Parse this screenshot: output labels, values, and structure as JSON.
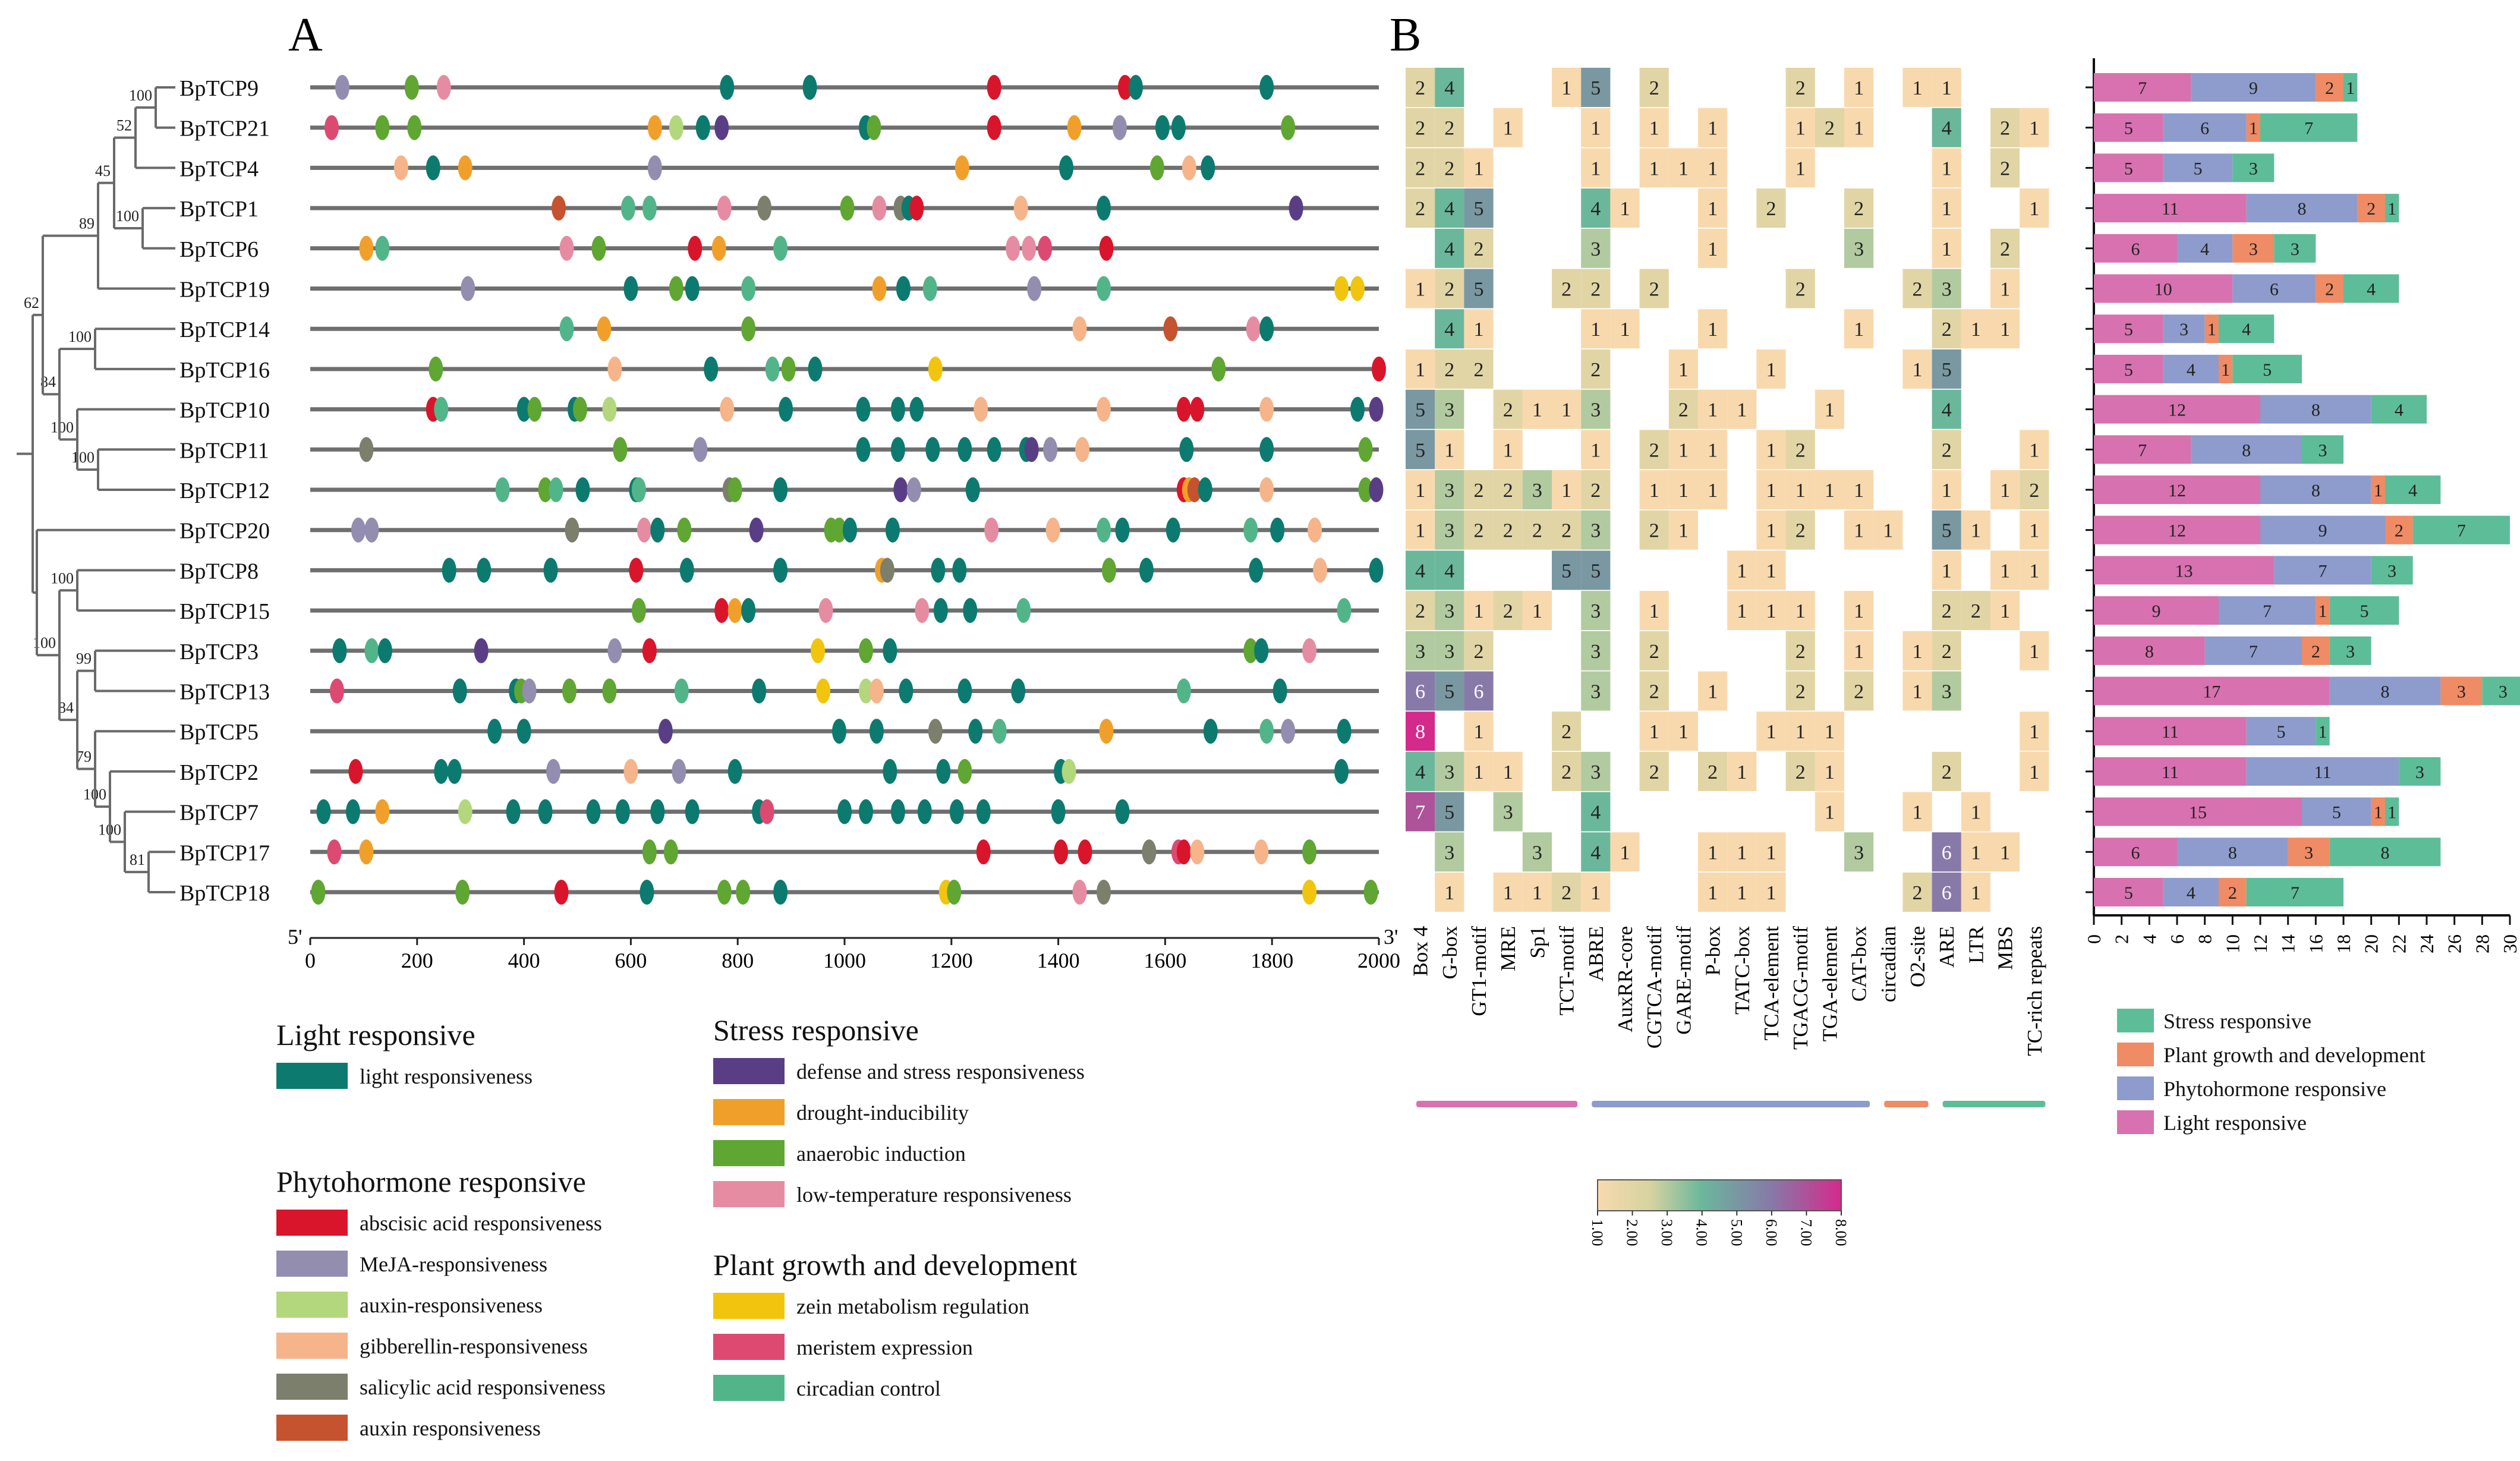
{
  "colors": {
    "light": "#0c7a6f",
    "defense": "#5a3e85",
    "drought": "#f0a02a",
    "anaerobic": "#5fa632",
    "lowtemp": "#e68ca2",
    "aba": "#d9152b",
    "meja": "#938db0",
    "auxin_resp": "#b3d77c",
    "gibberellin": "#f5b48a",
    "salicylic": "#7b7f6c",
    "auxin": "#c6532f",
    "zein": "#f1c50d",
    "meristem": "#dc4a72",
    "circadian": "#52b58a",
    "bar_light": "#d871b0",
    "bar_phyto": "#8d9ccc",
    "bar_plant": "#ef8b65",
    "bar_stress": "#5dbd98",
    "heat_low": "#f8d9ae",
    "heat_mid": "#6bb79c",
    "heat_high": "#d42a8c"
  },
  "panel_labels": {
    "a": "A",
    "b": "B"
  },
  "tree": {
    "genes": [
      "BpTCP9",
      "BpTCP21",
      "BpTCP4",
      "BpTCP1",
      "BpTCP6",
      "BpTCP19",
      "BpTCP14",
      "BpTCP16",
      "BpTCP10",
      "BpTCP11",
      "BpTCP12",
      "BpTCP20",
      "BpTCP8",
      "BpTCP15",
      "BpTCP3",
      "BpTCP13",
      "BpTCP5",
      "BpTCP2",
      "BpTCP7",
      "BpTCP17",
      "BpTCP18"
    ],
    "bootstrap": [
      "100",
      "52",
      "45",
      "100",
      "62",
      "89",
      "100",
      "84",
      "100",
      "100",
      "100",
      "100",
      "99",
      "84",
      "79",
      "100",
      "100",
      "81"
    ]
  },
  "motifs": {
    "axis": {
      "start_label": "5'",
      "end_label": "3'",
      "ticks": [
        "0",
        "200",
        "400",
        "600",
        "800",
        "1000",
        "1200",
        "1400",
        "1600",
        "1800",
        "2000"
      ],
      "max": 2000
    },
    "elements": [
      [
        "meja:60",
        "anaerobic:190",
        "lowtemp:250",
        "light:780",
        "light:935",
        "aba:1280",
        "aba:1525",
        "light:1545",
        "light:1790"
      ],
      [
        "meristem:40",
        "anaerobic:135",
        "anaerobic:195",
        "drought:645",
        "auxin_resp:685",
        "light:735",
        "defense:770",
        "light:1040",
        "anaerobic:1055",
        "aba:1280",
        "drought:1430",
        "meja:1515",
        "light:1595",
        "light:1625",
        "anaerobic:1830"
      ],
      [
        "gibberellin:170",
        "light:230",
        "drought:290",
        "meja:645",
        "drought:1220",
        "light:1415",
        "anaerobic:1585",
        "gibberellin:1645",
        "light:1680"
      ],
      [
        "auxin:465",
        "circadian:595",
        "circadian:635",
        "lowtemp:775",
        "salicylic:850",
        "anaerobic:1005",
        "lowtemp:1065",
        "salicylic:1105",
        "light:1120",
        "aba:1135",
        "gibberellin:1330",
        "light:1485",
        "defense:1845"
      ],
      [
        "drought:105",
        "circadian:135",
        "lowtemp:480",
        "anaerobic:540",
        "aba:720",
        "drought:765",
        "circadian:880",
        "lowtemp:1315",
        "lowtemp:1345",
        "meristem:1375",
        "aba:1490"
      ],
      [
        "meja:295",
        "light:600",
        "anaerobic:685",
        "light:715",
        "circadian:820",
        "drought:1065",
        "light:1110",
        "circadian:1160",
        "meja:1355",
        "circadian:1485",
        "zein:1930",
        "zein:1960"
      ],
      [
        "circadian:480",
        "drought:550",
        "anaerobic:820",
        "gibberellin:1440",
        "auxin:1610",
        "lowtemp:1765",
        "light:1790"
      ],
      [
        "anaerobic:235",
        "gibberellin:570",
        "light:750",
        "circadian:865",
        "anaerobic:895",
        "light:945",
        "zein:1170",
        "anaerobic:1700",
        "aba:2000"
      ],
      [
        "aba:230",
        "circadian:245",
        "light:400",
        "anaerobic:420",
        "light:495",
        "anaerobic:505",
        "auxin_resp:560",
        "gibberellin:780",
        "light:890",
        "light:1035",
        "light:1100",
        "light:1135",
        "gibberellin:1255",
        "gibberellin:1485",
        "aba:1635",
        "aba:1660",
        "gibberellin:1790",
        "light:1960",
        "defense:1995"
      ],
      [
        "salicylic:105",
        "anaerobic:580",
        "meja:730",
        "light:1035",
        "light:1100",
        "light:1165",
        "light:1225",
        "light:1280",
        "light:1340",
        "defense:1350",
        "meja:1385",
        "gibberellin:1445",
        "light:1640",
        "light:1790",
        "anaerobic:1975"
      ],
      [
        "circadian:360",
        "anaerobic:440",
        "circadian:460",
        "light:510",
        "light:610",
        "circadian:615",
        "salicylic:785",
        "anaerobic:795",
        "light:880",
        "defense:1105",
        "meja:1130",
        "light:1240",
        "aba:1635",
        "drought:1645",
        "auxin:1655",
        "light:1675",
        "gibberellin:1790",
        "anaerobic:1975",
        "defense:1995"
      ],
      [
        "meja:90",
        "meja:115",
        "salicylic:490",
        "lowtemp:625",
        "light:650",
        "anaerobic:700",
        "defense:835",
        "anaerobic:975",
        "anaerobic:990",
        "light:1010",
        "light:1090",
        "lowtemp:1275",
        "gibberellin:1390",
        "circadian:1485",
        "light:1520",
        "light:1615",
        "circadian:1760",
        "light:1810",
        "gibberellin:1880"
      ],
      [
        "light:260",
        "light:325",
        "light:450",
        "aba:610",
        "light:705",
        "light:880",
        "drought:1070",
        "salicylic:1080",
        "light:1175",
        "light:1215",
        "anaerobic:1495",
        "light:1565",
        "light:1770",
        "gibberellin:1890",
        "light:1995"
      ],
      [
        "anaerobic:615",
        "aba:770",
        "drought:795",
        "light:820",
        "lowtemp:965",
        "lowtemp:1145",
        "light:1180",
        "light:1235",
        "circadian:1335",
        "circadian:1935"
      ],
      [
        "light:55",
        "circadian:115",
        "light:140",
        "defense:320",
        "meja:570",
        "aba:635",
        "zein:950",
        "anaerobic:1040",
        "light:1085",
        "anaerobic:1760",
        "light:1780",
        "lowtemp:1870"
      ],
      [
        "meristem:50",
        "light:280",
        "light:385",
        "anaerobic:395",
        "meja:410",
        "anaerobic:485",
        "anaerobic:560",
        "circadian:695",
        "light:840",
        "zein:960",
        "auxin_resp:1040",
        "gibberellin:1060",
        "light:1115",
        "light:1225",
        "light:1325",
        "circadian:1635",
        "light:1815"
      ],
      [
        "light:345",
        "light:400",
        "defense:665",
        "light:990",
        "light:1060",
        "salicylic:1170",
        "light:1245",
        "circadian:1290",
        "drought:1490",
        "light:1685",
        "circadian:1790",
        "meja:1830",
        "light:1935"
      ],
      [
        "aba:85",
        "light:245",
        "light:270",
        "meja:455",
        "gibberellin:600",
        "meja:690",
        "light:795",
        "light:1085",
        "light:1185",
        "anaerobic:1225",
        "light:1405",
        "auxin_resp:1420",
        "light:1930"
      ],
      [
        "light:25",
        "light:80",
        "drought:135",
        "auxin_resp:290",
        "light:380",
        "light:440",
        "light:530",
        "light:585",
        "light:650",
        "light:715",
        "light:840",
        "meristem:855",
        "light:1000",
        "light:1040",
        "light:1100",
        "light:1150",
        "light:1210",
        "light:1260",
        "light:1400",
        "light:1520"
      ],
      [
        "meristem:45",
        "drought:105",
        "anaerobic:635",
        "anaerobic:675",
        "aba:1260",
        "aba:1405",
        "aba:1450",
        "salicylic:1570",
        "meristem:1625",
        "aba:1635",
        "gibberellin:1660",
        "gibberellin:1780",
        "anaerobic:1870"
      ],
      [
        "anaerobic:15",
        "anaerobic:285",
        "aba:470",
        "light:630",
        "anaerobic:775",
        "anaerobic:810",
        "light:880",
        "zein:1190",
        "anaerobic:1205",
        "lowtemp:1440",
        "salicylic:1485",
        "zein:1870",
        "anaerobic:1985"
      ]
    ]
  },
  "heatmap": {
    "columns": [
      "Box 4",
      "G-box",
      "GT1-motif",
      "MRE",
      "Sp1",
      "TCT-motif",
      "ABRE",
      "AuxRR-core",
      "CGTCA-motif",
      "GARE-motif",
      "P-box",
      "TATC-box",
      "TCA-element",
      "TGACG-motif",
      "TGA-element",
      "CAT-box",
      "circadian",
      "O2-site",
      "ARE",
      "LTR",
      "MBS",
      "TC-rich repeats"
    ],
    "values": [
      [
        2,
        4,
        0,
        0,
        0,
        1,
        5,
        0,
        2,
        0,
        0,
        0,
        0,
        2,
        0,
        1,
        0,
        1,
        1,
        0,
        0,
        0
      ],
      [
        2,
        2,
        0,
        1,
        0,
        0,
        1,
        0,
        1,
        0,
        1,
        0,
        0,
        1,
        2,
        1,
        0,
        0,
        4,
        0,
        2,
        1
      ],
      [
        2,
        2,
        1,
        0,
        0,
        0,
        1,
        0,
        1,
        1,
        1,
        0,
        0,
        1,
        0,
        0,
        0,
        0,
        1,
        0,
        2,
        0
      ],
      [
        2,
        4,
        5,
        0,
        0,
        0,
        4,
        1,
        0,
        0,
        1,
        0,
        2,
        0,
        0,
        2,
        0,
        0,
        1,
        0,
        0,
        1
      ],
      [
        0,
        4,
        2,
        0,
        0,
        0,
        3,
        0,
        0,
        0,
        1,
        0,
        0,
        0,
        0,
        3,
        0,
        0,
        1,
        0,
        2,
        0
      ],
      [
        1,
        2,
        5,
        0,
        0,
        2,
        2,
        0,
        2,
        0,
        0,
        0,
        0,
        2,
        0,
        0,
        0,
        2,
        3,
        0,
        1,
        0
      ],
      [
        0,
        4,
        1,
        0,
        0,
        0,
        1,
        1,
        0,
        0,
        1,
        0,
        0,
        0,
        0,
        1,
        0,
        0,
        2,
        1,
        1,
        0
      ],
      [
        1,
        2,
        2,
        0,
        0,
        0,
        2,
        0,
        0,
        1,
        0,
        0,
        1,
        0,
        0,
        0,
        0,
        1,
        5,
        0,
        0,
        0
      ],
      [
        5,
        3,
        0,
        2,
        1,
        1,
        3,
        0,
        0,
        2,
        1,
        1,
        0,
        0,
        1,
        0,
        0,
        0,
        4,
        0,
        0,
        0
      ],
      [
        5,
        1,
        0,
        1,
        0,
        0,
        1,
        0,
        2,
        1,
        1,
        0,
        1,
        2,
        0,
        0,
        0,
        0,
        2,
        0,
        0,
        1
      ],
      [
        1,
        3,
        2,
        2,
        3,
        1,
        2,
        0,
        1,
        1,
        1,
        0,
        1,
        1,
        1,
        1,
        0,
        0,
        1,
        0,
        1,
        2
      ],
      [
        1,
        3,
        2,
        2,
        2,
        2,
        3,
        0,
        2,
        1,
        0,
        0,
        1,
        2,
        0,
        1,
        1,
        0,
        5,
        1,
        0,
        1
      ],
      [
        4,
        4,
        0,
        0,
        0,
        5,
        5,
        0,
        0,
        0,
        0,
        1,
        1,
        0,
        0,
        0,
        0,
        0,
        1,
        0,
        1,
        1
      ],
      [
        2,
        3,
        1,
        2,
        1,
        0,
        3,
        0,
        1,
        0,
        0,
        1,
        1,
        1,
        0,
        1,
        0,
        0,
        2,
        2,
        1,
        0
      ],
      [
        3,
        3,
        2,
        0,
        0,
        0,
        3,
        0,
        2,
        0,
        0,
        0,
        0,
        2,
        0,
        1,
        0,
        1,
        2,
        0,
        0,
        1
      ],
      [
        6,
        5,
        6,
        0,
        0,
        0,
        3,
        0,
        2,
        0,
        1,
        0,
        0,
        2,
        0,
        2,
        0,
        1,
        3,
        0,
        0,
        0
      ],
      [
        8,
        0,
        1,
        0,
        0,
        2,
        0,
        0,
        1,
        1,
        0,
        0,
        1,
        1,
        1,
        0,
        0,
        0,
        0,
        0,
        0,
        1
      ],
      [
        4,
        3,
        1,
        1,
        0,
        2,
        3,
        0,
        2,
        0,
        2,
        1,
        0,
        2,
        1,
        0,
        0,
        0,
        2,
        0,
        0,
        1
      ],
      [
        7,
        5,
        0,
        3,
        0,
        0,
        4,
        0,
        0,
        0,
        0,
        0,
        0,
        0,
        1,
        0,
        0,
        1,
        0,
        1,
        0,
        0
      ],
      [
        0,
        3,
        0,
        0,
        3,
        0,
        4,
        1,
        0,
        0,
        1,
        1,
        1,
        0,
        0,
        3,
        0,
        0,
        6,
        1,
        1,
        0
      ],
      [
        0,
        1,
        0,
        1,
        1,
        2,
        1,
        0,
        0,
        0,
        1,
        1,
        1,
        0,
        0,
        0,
        0,
        2,
        6,
        1,
        0,
        0
      ]
    ],
    "colorbar_ticks": [
      "1.00",
      "2.00",
      "3.00",
      "4.00",
      "5.00",
      "6.00",
      "7.00",
      "8.00"
    ]
  },
  "chart_data": {
    "type": "bar",
    "orientation": "horizontal",
    "stacked": true,
    "categories": [
      "BpTCP9",
      "BpTCP21",
      "BpTCP4",
      "BpTCP1",
      "BpTCP6",
      "BpTCP19",
      "BpTCP14",
      "BpTCP16",
      "BpTCP10",
      "BpTCP11",
      "BpTCP12",
      "BpTCP20",
      "BpTCP8",
      "BpTCP15",
      "BpTCP3",
      "BpTCP13",
      "BpTCP5",
      "BpTCP2",
      "BpTCP7",
      "BpTCP17",
      "BpTCP18"
    ],
    "series": [
      {
        "name": "Light responsive",
        "color_key": "bar_light",
        "values": [
          7,
          5,
          5,
          11,
          6,
          10,
          5,
          5,
          12,
          7,
          12,
          12,
          13,
          9,
          8,
          17,
          11,
          11,
          15,
          6,
          5
        ]
      },
      {
        "name": "Phytohormone responsive",
        "color_key": "bar_phyto",
        "values": [
          9,
          6,
          5,
          8,
          4,
          6,
          3,
          4,
          8,
          8,
          8,
          9,
          7,
          7,
          7,
          8,
          5,
          11,
          5,
          8,
          4
        ]
      },
      {
        "name": "Plant growth and development",
        "color_key": "bar_plant",
        "values": [
          2,
          1,
          0,
          2,
          3,
          2,
          1,
          1,
          0,
          0,
          1,
          2,
          0,
          1,
          2,
          3,
          0,
          0,
          1,
          3,
          2
        ]
      },
      {
        "name": "Stress responsive",
        "color_key": "bar_stress",
        "values": [
          1,
          7,
          3,
          1,
          3,
          4,
          4,
          5,
          4,
          3,
          4,
          7,
          3,
          5,
          3,
          3,
          1,
          3,
          1,
          8,
          7
        ]
      }
    ],
    "xlim": [
      0,
      30
    ],
    "xticks": [
      "0",
      "2",
      "4",
      "6",
      "8",
      "10",
      "12",
      "14",
      "16",
      "18",
      "20",
      "22",
      "24",
      "26",
      "28",
      "30"
    ],
    "legend": [
      "Stress responsive",
      "Plant growth and development",
      "Phytohormone responsive",
      "Light responsive"
    ],
    "legend_position": "bottom"
  },
  "legend_a": {
    "groups": [
      {
        "title": "Light responsive",
        "items": [
          {
            "key": "light",
            "label": "light responsiveness"
          }
        ]
      },
      {
        "title": "Phytohormone responsive",
        "items": [
          {
            "key": "aba",
            "label": "abscisic acid responsiveness"
          },
          {
            "key": "meja",
            "label": "MeJA-responsiveness"
          },
          {
            "key": "auxin_resp",
            "label": "auxin-responsiveness"
          },
          {
            "key": "gibberellin",
            "label": "gibberellin-responsiveness"
          },
          {
            "key": "salicylic",
            "label": "salicylic acid responsiveness"
          },
          {
            "key": "auxin",
            "label": "auxin responsiveness"
          }
        ]
      },
      {
        "title": "Stress responsive",
        "items": [
          {
            "key": "defense",
            "label": "defense and stress responsiveness"
          },
          {
            "key": "drought",
            "label": "drought-inducibility"
          },
          {
            "key": "anaerobic",
            "label": "anaerobic induction"
          },
          {
            "key": "lowtemp",
            "label": "low-temperature responsiveness"
          }
        ]
      },
      {
        "title": "Plant growth and development",
        "items": [
          {
            "key": "zein",
            "label": "zein metabolism regulation"
          },
          {
            "key": "meristem",
            "label": "meristem expression"
          },
          {
            "key": "circadian",
            "label": "circadian control"
          }
        ]
      }
    ]
  }
}
